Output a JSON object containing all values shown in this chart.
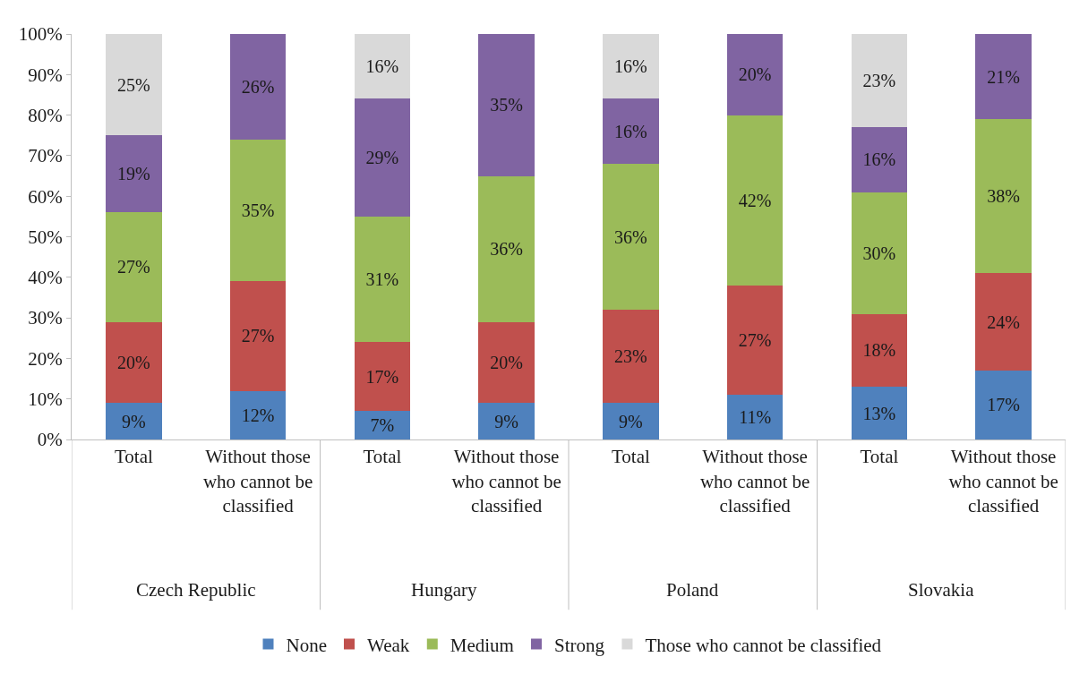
{
  "chart_data": {
    "type": "bar",
    "stacked": true,
    "categories": [
      "Total",
      "Without those who cannot be classified",
      "Total",
      "Without those who cannot be classified",
      "Total",
      "Without those who cannot be classified",
      "Total",
      "Without those who cannot be classified"
    ],
    "series": [
      {
        "name": "None",
        "color": "#4f81bd",
        "values": [
          9,
          12,
          7,
          9,
          9,
          11,
          13,
          17
        ],
        "value_labels": [
          "9%",
          "12%",
          "7%",
          "9%",
          "9%",
          "11%",
          "13%",
          "17%"
        ]
      },
      {
        "name": "Weak",
        "color": "#c0504d",
        "values": [
          20,
          27,
          17,
          20,
          23,
          27,
          18,
          24
        ],
        "value_labels": [
          "20%",
          "27%",
          "17%",
          "20%",
          "23%",
          "27%",
          "18%",
          "24%"
        ]
      },
      {
        "name": "Medium",
        "color": "#9bbb59",
        "values": [
          27,
          35,
          31,
          36,
          36,
          42,
          30,
          38
        ],
        "value_labels": [
          "27%",
          "35%",
          "31%",
          "36%",
          "36%",
          "42%",
          "30%",
          "38%"
        ]
      },
      {
        "name": "Strong",
        "color": "#8064a2",
        "values": [
          19,
          26,
          29,
          35,
          16,
          20,
          16,
          21
        ],
        "value_labels": [
          "19%",
          "26%",
          "29%",
          "35%",
          "16%",
          "20%",
          "16%",
          "21%"
        ]
      },
      {
        "name": "Those who cannot be classified",
        "color": "#d9d9d9",
        "values": [
          25,
          null,
          16,
          null,
          16,
          null,
          23,
          null
        ],
        "value_labels": [
          "25%",
          null,
          "16%",
          null,
          "16%",
          null,
          "23%",
          null
        ]
      }
    ],
    "annotations": [
      "Czech Republic",
      "Hungary",
      "Poland",
      "Slovakia"
    ],
    "ylim": [
      0,
      100
    ],
    "yticks": [
      {
        "value": 0,
        "label": "0%"
      },
      {
        "value": 10,
        "label": "10%"
      },
      {
        "value": 20,
        "label": "20%"
      },
      {
        "value": 30,
        "label": "30%"
      },
      {
        "value": 40,
        "label": "40%"
      },
      {
        "value": 50,
        "label": "50%"
      },
      {
        "value": 60,
        "label": "60%"
      },
      {
        "value": 70,
        "label": "70%"
      },
      {
        "value": 80,
        "label": "80%"
      },
      {
        "value": 90,
        "label": "90%"
      },
      {
        "value": 100,
        "label": "100%"
      }
    ],
    "grid": false,
    "legend": "bottom"
  }
}
